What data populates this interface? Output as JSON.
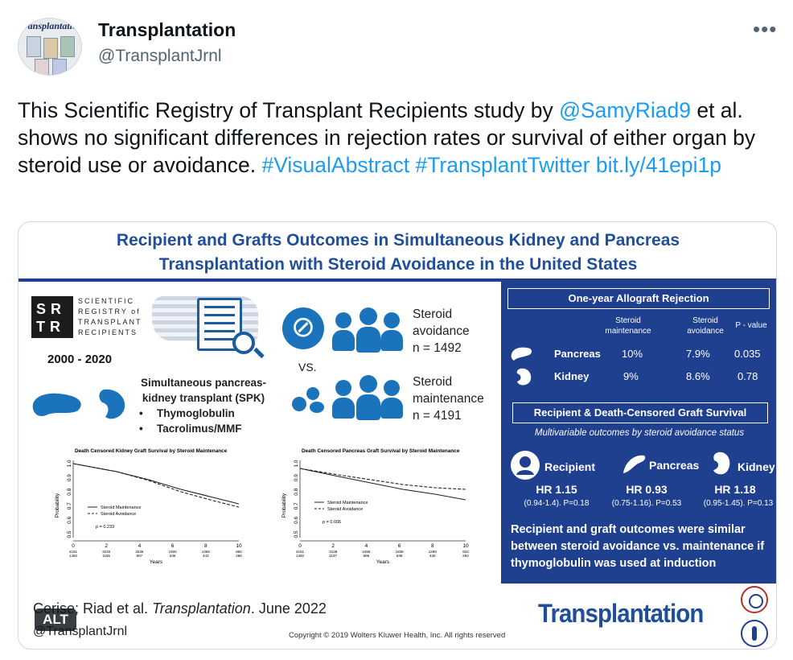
{
  "post": {
    "author_name": "Transplantation",
    "author_handle": "@TransplantJrnl",
    "avatar_text": "ransplantatio",
    "more_icon": "more-horizontal-icon",
    "text_parts": [
      {
        "text": "This Scientific Registry of Transplant Recipients study by ",
        "link": false
      },
      {
        "text": "@SamyRiad9",
        "link": true
      },
      {
        "text": " et al. shows no significant differences in rejection rates or survival of either organ by steroid use or avoidance. ",
        "link": false
      },
      {
        "text": "#VisualAbstract",
        "link": true
      },
      {
        "text": " ",
        "link": false
      },
      {
        "text": "#TransplantTwitter",
        "link": true
      },
      {
        "text": " ",
        "link": false
      },
      {
        "text": "bit.ly/41epi1p",
        "link": true
      }
    ],
    "link_color": "#1d9bf0"
  },
  "abstract": {
    "title_line1": "Recipient and Grafts Outcomes in Simultaneous Kidney and Pancreas",
    "title_line2": "Transplantation with Steroid Avoidance in the United States",
    "srtr_logo": "SRTR",
    "srtr_text": [
      "SCIENTIFIC",
      "REGISTRY of",
      "TRANSPLANT",
      "RECIPIENTS"
    ],
    "years": "2000 - 2020",
    "spk_title_1": "Simultaneous pancreas-",
    "spk_title_2": "kidney transplant (SPK)",
    "spk_bullets": [
      "Thymoglobulin",
      "Tacrolimus/MMF"
    ],
    "vs": "VS.",
    "group_avoid": [
      "Steroid",
      "avoidance",
      "n = 1492"
    ],
    "group_maint": [
      "Steroid",
      "maintenance",
      "n = 4191"
    ],
    "kidney_km": {
      "title": "Death Censored Kidney Graft Survival by Steroid Maintenance",
      "ylabel": "Probability",
      "xlabel": "Years",
      "yticks": [
        "1.0",
        "0.9",
        "0.8",
        "0.7",
        "0.6",
        "0.5"
      ],
      "xticks": [
        "0",
        "2",
        "4",
        "6",
        "8",
        "10"
      ],
      "risk_maint": [
        "4191",
        "3240",
        "2538",
        "1900",
        "1358",
        "860"
      ],
      "risk_avoid": [
        "1492",
        "1156",
        "907",
        "636",
        "443",
        "286"
      ],
      "legend": [
        "Steroid Maintenance",
        "Steroid Avoidance"
      ],
      "pvalue": "p = 0.233"
    },
    "pancreas_km": {
      "title": "Death Censored Pancreas Graft Survival by Steroid Maintenance",
      "ylabel": "Probability",
      "xlabel": "Years",
      "yticks": [
        "1.0",
        "0.9",
        "0.8",
        "0.7",
        "0.6",
        "0.5"
      ],
      "xticks": [
        "0",
        "2",
        "4",
        "6",
        "8",
        "10"
      ],
      "risk_maint": [
        "4191",
        "3139",
        "2458",
        "1838",
        "1289",
        "822"
      ],
      "risk_avoid": [
        "1492",
        "1137",
        "896",
        "639",
        "436",
        "292"
      ],
      "legend": [
        "Steroid Maintenance",
        "Steroid Avoidance"
      ],
      "pvalue": "p = 0.006"
    },
    "rejection": {
      "header": "One-year Allograft Rejection",
      "col_maint": [
        "Steroid",
        "maintenance"
      ],
      "col_avoid": [
        "Steroid",
        "avoidance"
      ],
      "col_p": "P - value",
      "rows": [
        {
          "label": "Pancreas",
          "maint": "10%",
          "avoid": "7.9%",
          "p": "0.035"
        },
        {
          "label": "Kidney",
          "maint": "9%",
          "avoid": "8.6%",
          "p": "0.78"
        }
      ]
    },
    "survival": {
      "header": "Recipient & Death-Censored  Graft Survival",
      "subheader": "Multivariable outcomes by steroid avoidance status",
      "items": [
        {
          "label": "Recipient",
          "hr": "HR 1.15",
          "ci": "(0.94-1.4). P=0.18",
          "icon": "person-icon"
        },
        {
          "label": "Pancreas",
          "hr": "HR 0.93",
          "ci": "(0.75-1.16). P=0.53",
          "icon": "pancreas-icon"
        },
        {
          "label": "Kidney",
          "hr": "HR 1.18",
          "ci": "(0.95-1.45). P=0.13",
          "icon": "kidney-icon"
        }
      ]
    },
    "conclusion": "Recipient and graft outcomes were similar between steroid avoidance vs. maintenance if thymoglobulin was used at induction",
    "citation_prefix": "Cerise; Riad et al. ",
    "citation_journal": "Transplantation",
    "citation_suffix": ". June 2022",
    "footer_handle": "@TransplantJrnl",
    "copyright": "Copyright © 2019  Wolters Kluwer Health, Inc. All rights reserved",
    "journal_logo": "Transplantation",
    "alt_badge": "ALT"
  }
}
